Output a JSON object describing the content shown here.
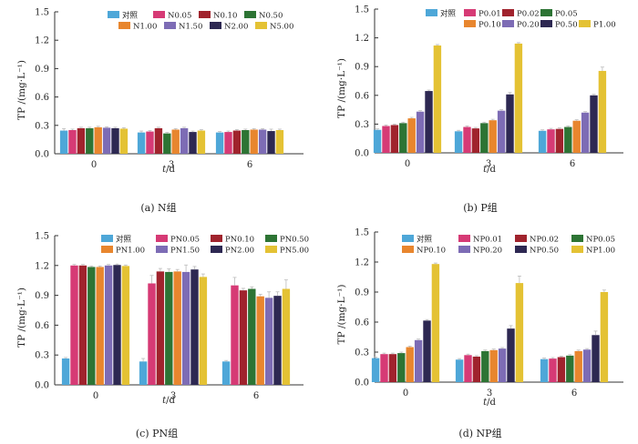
{
  "chart_data": [
    {
      "type": "bar",
      "caption": "(a)  N组",
      "ylabel": "TP /(mg·L⁻¹)",
      "xlabel_italic": "t",
      "xlabel_rest": "/d",
      "categories": [
        "0",
        "3",
        "6"
      ],
      "ylim": [
        0.0,
        1.5
      ],
      "yticks": [
        "0.0",
        "0.3",
        "0.6",
        "0.9",
        "1.2",
        "1.5"
      ],
      "grid": false,
      "legend_rows": [
        [
          "对照",
          "N0.05",
          "N0.10",
          "N0.50"
        ],
        [
          "N1.00",
          "N1.50",
          "N2.00",
          "N5.00"
        ]
      ],
      "series": [
        {
          "name": "对照",
          "values": [
            0.245,
            0.225,
            0.225
          ],
          "errors": [
            0.02,
            0.015,
            0.01
          ]
        },
        {
          "name": "N0.05",
          "values": [
            0.25,
            0.235,
            0.23
          ],
          "errors": [
            0.01,
            0.01,
            0.01
          ]
        },
        {
          "name": "N0.10",
          "values": [
            0.27,
            0.27,
            0.245
          ],
          "errors": [
            0.01,
            0.01,
            0.01
          ]
        },
        {
          "name": "N0.50",
          "values": [
            0.27,
            0.215,
            0.25
          ],
          "errors": [
            0.01,
            0.01,
            0.01
          ]
        },
        {
          "name": "N1.00",
          "values": [
            0.28,
            0.255,
            0.255
          ],
          "errors": [
            0.01,
            0.01,
            0.01
          ]
        },
        {
          "name": "N1.50",
          "values": [
            0.275,
            0.27,
            0.255
          ],
          "errors": [
            0.01,
            0.01,
            0.01
          ]
        },
        {
          "name": "N2.00",
          "values": [
            0.27,
            0.23,
            0.24
          ],
          "errors": [
            0.01,
            0.01,
            0.02
          ]
        },
        {
          "name": "N5.00",
          "values": [
            0.265,
            0.245,
            0.25
          ],
          "errors": [
            0.01,
            0.01,
            0.01
          ]
        }
      ]
    },
    {
      "type": "bar",
      "caption": "(b)  P组",
      "ylabel": "TP /(mg·L⁻¹)",
      "xlabel_italic": "t",
      "xlabel_rest": "/d",
      "categories": [
        "0",
        "3",
        "6"
      ],
      "ylim": [
        0.0,
        1.5
      ],
      "yticks": [
        "0.0",
        "0.3",
        "0.6",
        "0.9",
        "1.2",
        "1.5"
      ],
      "grid": false,
      "legend_rows": [
        [
          "对照",
          "P0.01",
          "P0.02",
          "P0.05"
        ],
        [
          "P0.10",
          "P0.20",
          "P0.50",
          "P1.00"
        ]
      ],
      "series": [
        {
          "name": "对照",
          "values": [
            0.24,
            0.225,
            0.23
          ],
          "errors": [
            0.01,
            0.01,
            0.01
          ]
        },
        {
          "name": "P0.01",
          "values": [
            0.28,
            0.27,
            0.245
          ],
          "errors": [
            0.01,
            0.01,
            0.01
          ]
        },
        {
          "name": "P0.02",
          "values": [
            0.29,
            0.255,
            0.25
          ],
          "errors": [
            0.01,
            0.01,
            0.01
          ]
        },
        {
          "name": "P0.05",
          "values": [
            0.31,
            0.31,
            0.27
          ],
          "errors": [
            0.01,
            0.01,
            0.01
          ]
        },
        {
          "name": "P0.10",
          "values": [
            0.36,
            0.34,
            0.335
          ],
          "errors": [
            0.01,
            0.01,
            0.01
          ]
        },
        {
          "name": "P0.20",
          "values": [
            0.43,
            0.44,
            0.42
          ],
          "errors": [
            0.01,
            0.01,
            0.01
          ]
        },
        {
          "name": "P0.50",
          "values": [
            0.645,
            0.61,
            0.6
          ],
          "errors": [
            0.01,
            0.02,
            0.01
          ]
        },
        {
          "name": "P1.00",
          "values": [
            1.12,
            1.14,
            0.855
          ],
          "errors": [
            0.01,
            0.01,
            0.04
          ]
        }
      ]
    },
    {
      "type": "bar",
      "caption": "(c)  PN组",
      "ylabel": "TP /(mg·L⁻¹)",
      "xlabel_italic": "t",
      "xlabel_rest": "/d",
      "categories": [
        "0",
        "3",
        "6"
      ],
      "ylim": [
        0.0,
        1.5
      ],
      "yticks": [
        "0.0",
        "0.3",
        "0.6",
        "0.9",
        "1.2",
        "1.5"
      ],
      "grid": false,
      "legend_rows": [
        [
          "对照",
          "PN0.05",
          "PN0.10",
          "PN0.50"
        ],
        [
          "PN1.00",
          "PN1.50",
          "PN2.00",
          "PN5.00"
        ]
      ],
      "series": [
        {
          "name": "对照",
          "values": [
            0.265,
            0.235,
            0.235
          ],
          "errors": [
            0.01,
            0.03,
            0.01
          ]
        },
        {
          "name": "PN0.05",
          "values": [
            1.2,
            1.02,
            1.0
          ],
          "errors": [
            0.01,
            0.08,
            0.08
          ]
        },
        {
          "name": "PN0.10",
          "values": [
            1.2,
            1.14,
            0.95
          ],
          "errors": [
            0.01,
            0.03,
            0.02
          ]
        },
        {
          "name": "PN0.50",
          "values": [
            1.185,
            1.135,
            0.965
          ],
          "errors": [
            0.01,
            0.03,
            0.02
          ]
        },
        {
          "name": "PN1.00",
          "values": [
            1.185,
            1.14,
            0.89
          ],
          "errors": [
            0.01,
            0.02,
            0.02
          ]
        },
        {
          "name": "PN1.50",
          "values": [
            1.2,
            1.135,
            0.875
          ],
          "errors": [
            0.01,
            0.07,
            0.06
          ]
        },
        {
          "name": "PN2.00",
          "values": [
            1.205,
            1.16,
            0.895
          ],
          "errors": [
            0.01,
            0.03,
            0.04
          ]
        },
        {
          "name": "PN5.00",
          "values": [
            1.195,
            1.085,
            0.965
          ],
          "errors": [
            0.01,
            0.03,
            0.09
          ]
        }
      ]
    },
    {
      "type": "bar",
      "caption": "(d)  NP组",
      "ylabel": "TP /(mg·L⁻¹)",
      "xlabel_italic": "t",
      "xlabel_rest": "/d",
      "categories": [
        "0",
        "3",
        "6"
      ],
      "ylim": [
        0.0,
        1.5
      ],
      "yticks": [
        "0.0",
        "0.3",
        "0.6",
        "0.9",
        "1.2",
        "1.5"
      ],
      "grid": false,
      "legend_rows": [
        [
          "对照",
          "NP0.01",
          "NP0.02",
          "NP0.05"
        ],
        [
          "NP0.10",
          "NP0.20",
          "NP0.50",
          "NP1.00"
        ]
      ],
      "series": [
        {
          "name": "对照",
          "values": [
            0.24,
            0.225,
            0.23
          ],
          "errors": [
            0.01,
            0.01,
            0.01
          ]
        },
        {
          "name": "NP0.01",
          "values": [
            0.28,
            0.27,
            0.235
          ],
          "errors": [
            0.01,
            0.01,
            0.01
          ]
        },
        {
          "name": "NP0.02",
          "values": [
            0.28,
            0.255,
            0.25
          ],
          "errors": [
            0.01,
            0.01,
            0.01
          ]
        },
        {
          "name": "NP0.05",
          "values": [
            0.29,
            0.31,
            0.265
          ],
          "errors": [
            0.01,
            0.01,
            0.01
          ]
        },
        {
          "name": "NP0.10",
          "values": [
            0.35,
            0.32,
            0.31
          ],
          "errors": [
            0.01,
            0.01,
            0.01
          ]
        },
        {
          "name": "NP0.20",
          "values": [
            0.42,
            0.335,
            0.325
          ],
          "errors": [
            0.01,
            0.01,
            0.01
          ]
        },
        {
          "name": "NP0.50",
          "values": [
            0.615,
            0.535,
            0.47
          ],
          "errors": [
            0.01,
            0.03,
            0.04
          ]
        },
        {
          "name": "NP1.00",
          "values": [
            1.18,
            0.99,
            0.9
          ],
          "errors": [
            0.01,
            0.07,
            0.02
          ]
        }
      ]
    }
  ],
  "colors": [
    "#4ea7d8",
    "#d63a75",
    "#a0232d",
    "#2d7434",
    "#e8862e",
    "#7d6cb5",
    "#2d2852",
    "#e4c234"
  ]
}
